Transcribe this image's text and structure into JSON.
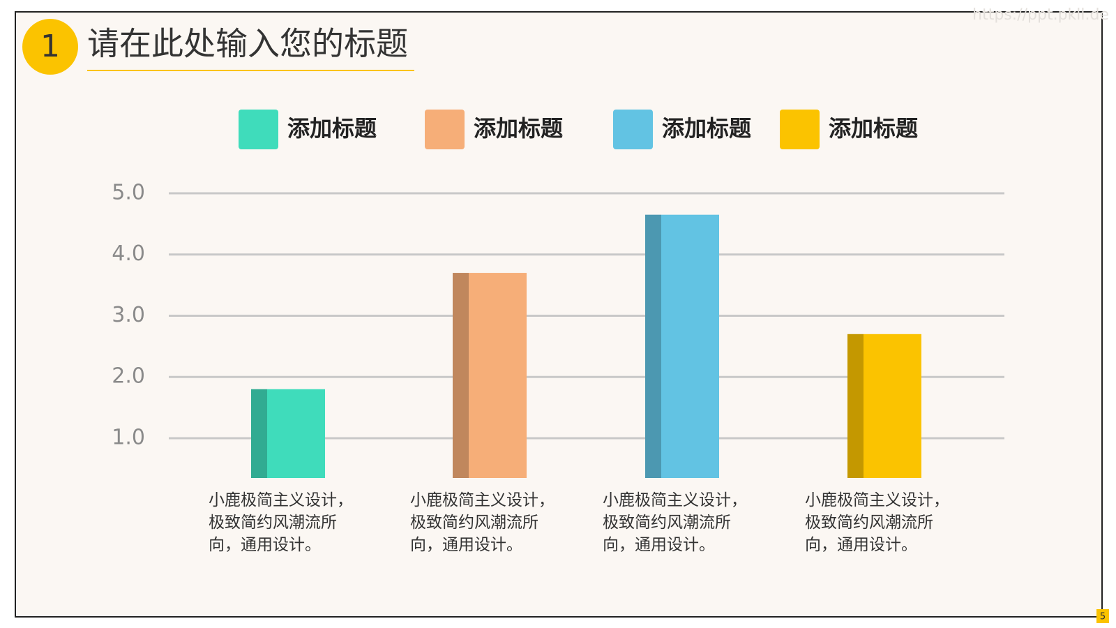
{
  "slide": {
    "number": "1",
    "title": "请在此处输入您的标题",
    "watermark": "https://ppt.pkll.de",
    "page": "5"
  },
  "chart_data": {
    "type": "bar",
    "categories": [
      "小鹿极简主义设计，极致简约风潮流所向，通用设计。",
      "小鹿极简主义设计，极致简约风潮流所向，通用设计。",
      "小鹿极简主义设计，极致简约风潮流所向，通用设计。",
      "小鹿极简主义设计，极致简约风潮流所向，通用设计。"
    ],
    "series": [
      {
        "name": "添加标题",
        "color": "#3fdcbb",
        "values": [
          1.8,
          null,
          null,
          null
        ]
      },
      {
        "name": "添加标题",
        "color": "#f6ae78",
        "values": [
          null,
          3.7,
          null,
          null
        ]
      },
      {
        "name": "添加标题",
        "color": "#62c3e3",
        "values": [
          null,
          null,
          4.65,
          null
        ]
      },
      {
        "name": "添加标题",
        "color": "#fbc300",
        "values": [
          null,
          null,
          null,
          2.7
        ]
      }
    ],
    "ylim": [
      0.35,
      5
    ],
    "yticks": [
      {
        "value": 1,
        "label": "1.0"
      },
      {
        "value": 2,
        "label": "2.0"
      },
      {
        "value": 3,
        "label": "3.0"
      },
      {
        "value": 4,
        "label": "4.0"
      },
      {
        "value": 5,
        "label": "5.0"
      }
    ],
    "grid": true,
    "legend": "top"
  }
}
